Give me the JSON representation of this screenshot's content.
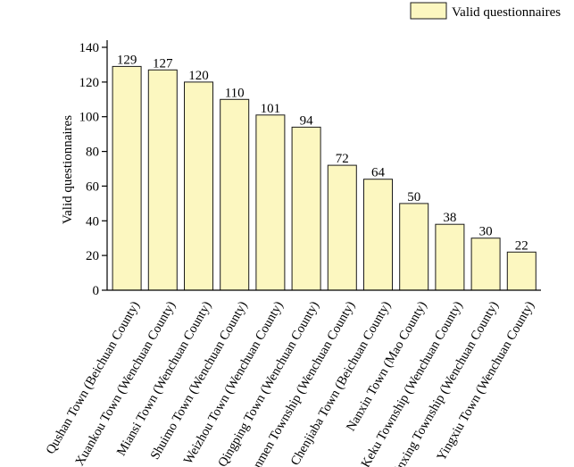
{
  "chart_data": {
    "type": "bar",
    "ylabel": "Valid questionnaires",
    "ylim": [
      0,
      140
    ],
    "yticks": [
      0,
      20,
      40,
      60,
      80,
      100,
      120,
      140
    ],
    "legend": {
      "position": "top-right",
      "label": "Valid questionnaires"
    },
    "bar_color": "#fcf7c0",
    "categories": [
      "Qushan Town (Beichuan County)",
      "Xuankou Town (Wenchuan County)",
      "Miansi Town (Wenchuan County)",
      "Shuimo Town (Wenchuan County)",
      "Weizhou Town (Wenchuan County)",
      "Qingping Town (Wenchuan County)",
      "Yanmen Township (Wenchuan County)",
      "Chenjiaba Town (Beichuan County)",
      "Nanxin Town (Mao County)",
      "Keku Township (Wenchuan County)",
      "Yinxing Township (Wenchuan County)",
      "Yingxiu Town (Wenchuan County)"
    ],
    "values": [
      129,
      127,
      120,
      110,
      101,
      94,
      72,
      64,
      50,
      38,
      30,
      22
    ]
  }
}
